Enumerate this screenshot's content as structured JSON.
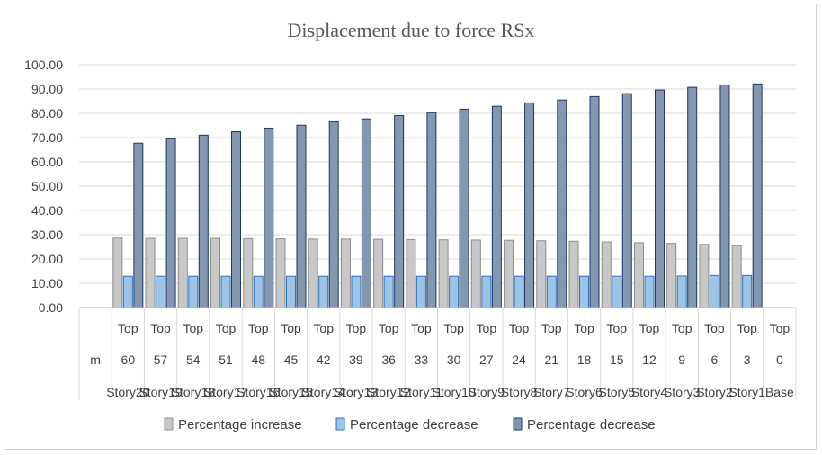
{
  "chart_data": {
    "type": "bar",
    "title": "Displacement due to force RSx",
    "xlabel": "",
    "ylabel": "",
    "ylim": [
      0,
      100
    ],
    "ytick_step": 10,
    "ytick_labels": [
      "0.00",
      "10.00",
      "20.00",
      "30.00",
      "40.00",
      "50.00",
      "60.00",
      "70.00",
      "80.00",
      "90.00",
      "100.00"
    ],
    "axis_row_labels": {
      "row1": "",
      "row2": "m",
      "row3": ""
    },
    "categories": [
      {
        "level": "Top",
        "elevation": "60",
        "story": "Story20"
      },
      {
        "level": "Top",
        "elevation": "57",
        "story": "Story19"
      },
      {
        "level": "Top",
        "elevation": "54",
        "story": "Story18"
      },
      {
        "level": "Top",
        "elevation": "51",
        "story": "Story17"
      },
      {
        "level": "Top",
        "elevation": "48",
        "story": "Story16"
      },
      {
        "level": "Top",
        "elevation": "45",
        "story": "Story15"
      },
      {
        "level": "Top",
        "elevation": "42",
        "story": "Story14"
      },
      {
        "level": "Top",
        "elevation": "39",
        "story": "Story13"
      },
      {
        "level": "Top",
        "elevation": "36",
        "story": "Story12"
      },
      {
        "level": "Top",
        "elevation": "33",
        "story": "Story11"
      },
      {
        "level": "Top",
        "elevation": "30",
        "story": "Story10"
      },
      {
        "level": "Top",
        "elevation": "27",
        "story": "Story9"
      },
      {
        "level": "Top",
        "elevation": "24",
        "story": "Story8"
      },
      {
        "level": "Top",
        "elevation": "21",
        "story": "Story7"
      },
      {
        "level": "Top",
        "elevation": "18",
        "story": "Story6"
      },
      {
        "level": "Top",
        "elevation": "15",
        "story": "Story5"
      },
      {
        "level": "Top",
        "elevation": "12",
        "story": "Story4"
      },
      {
        "level": "Top",
        "elevation": "9",
        "story": "Story3"
      },
      {
        "level": "Top",
        "elevation": "6",
        "story": "Story2"
      },
      {
        "level": "Top",
        "elevation": "3",
        "story": "Story1"
      },
      {
        "level": "Top",
        "elevation": "0",
        "story": "Base"
      }
    ],
    "series": [
      {
        "name": "Percentage increase",
        "color": "#c8c8c8",
        "stroke": "#8c8c8c",
        "values": [
          28.6,
          28.5,
          28.5,
          28.5,
          28.4,
          28.3,
          28.2,
          28.2,
          28.1,
          28.0,
          27.9,
          27.8,
          27.7,
          27.5,
          27.3,
          27.0,
          26.7,
          26.4,
          26.0,
          25.5,
          0
        ]
      },
      {
        "name": "Percentage decrease",
        "color": "#9dc3e6",
        "stroke": "#2e75b6",
        "values": [
          12.9,
          12.9,
          12.9,
          12.9,
          12.9,
          12.9,
          12.9,
          12.9,
          12.9,
          12.9,
          12.9,
          12.9,
          12.9,
          12.9,
          12.9,
          12.9,
          12.9,
          13.0,
          13.2,
          13.2,
          0
        ]
      },
      {
        "name": "Percentage decrease",
        "color": "#8496b0",
        "stroke": "#1f3864",
        "values": [
          67.7,
          69.5,
          71.0,
          72.4,
          73.9,
          75.1,
          76.5,
          77.7,
          79.1,
          80.3,
          81.7,
          82.9,
          84.3,
          85.5,
          86.9,
          88.1,
          89.6,
          90.7,
          91.7,
          92.1,
          0
        ]
      }
    ],
    "legend_position": "bottom",
    "grid": true
  }
}
